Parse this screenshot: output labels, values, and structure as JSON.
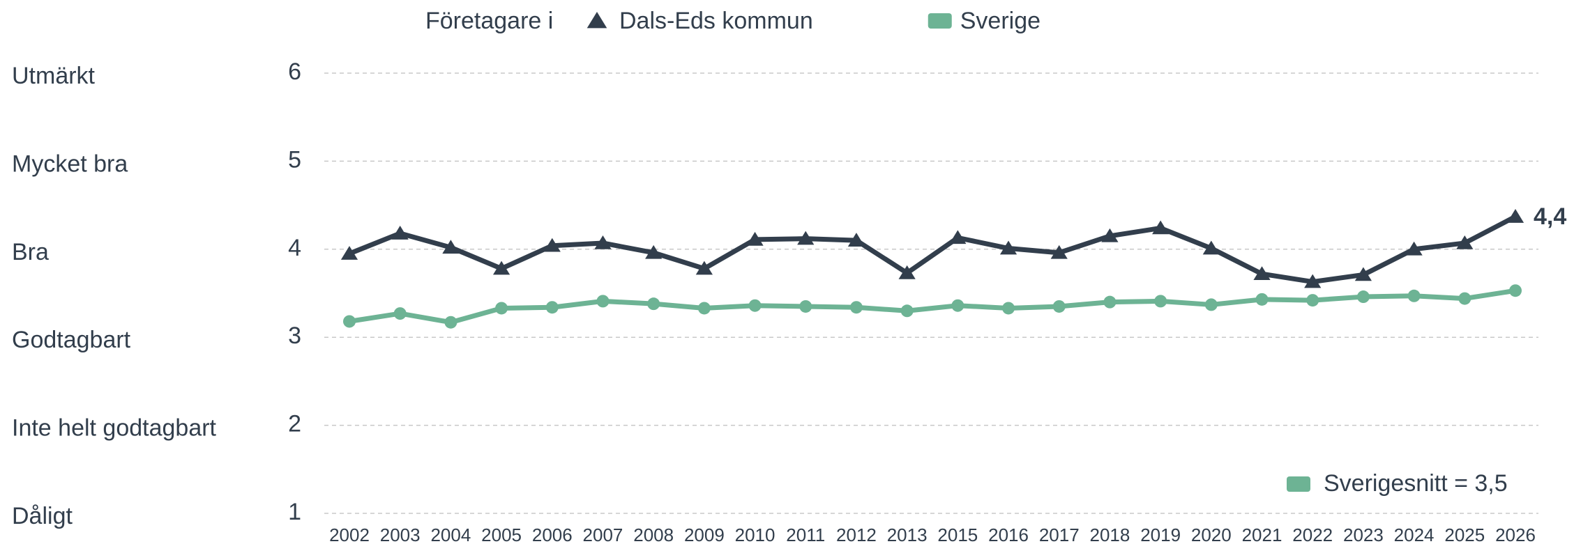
{
  "chart_data": {
    "type": "line",
    "legend_title": "Företagare i",
    "categories": [
      "2002",
      "2003",
      "2004",
      "2005",
      "2006",
      "2007",
      "2008",
      "2009",
      "2010",
      "2011",
      "2012",
      "2013",
      "2015",
      "2016",
      "2017",
      "2018",
      "2019",
      "2020",
      "2021",
      "2022",
      "2023",
      "2024",
      "2025",
      "2026"
    ],
    "series": [
      {
        "name": "Dals-Eds kommun",
        "color": "#323e4c",
        "marker": "triangle",
        "values": [
          3.95,
          4.18,
          4.02,
          3.78,
          4.04,
          4.07,
          3.96,
          3.78,
          4.11,
          4.12,
          4.1,
          3.73,
          4.13,
          4.01,
          3.96,
          4.15,
          4.24,
          4.01,
          3.72,
          3.63,
          3.71,
          4.0,
          4.07,
          4.37
        ],
        "last_value_label": "4,4"
      },
      {
        "name": "Sverige",
        "color": "#6db394",
        "marker": "circle",
        "values": [
          3.18,
          3.27,
          3.17,
          3.33,
          3.34,
          3.41,
          3.38,
          3.33,
          3.36,
          3.35,
          3.34,
          3.3,
          3.36,
          3.33,
          3.35,
          3.4,
          3.41,
          3.37,
          3.43,
          3.42,
          3.46,
          3.47,
          3.44,
          3.53
        ]
      }
    ],
    "ylim": [
      1,
      6
    ],
    "yticks": [
      1,
      2,
      3,
      4,
      5,
      6
    ],
    "ytick_descriptions": [
      "Dåligt",
      "Inte helt godtagbart",
      "Godtagbart",
      "Bra",
      "Mycket bra",
      "Utmärkt"
    ],
    "grid": true,
    "annotation": "Sverigesnitt = 3,5"
  }
}
